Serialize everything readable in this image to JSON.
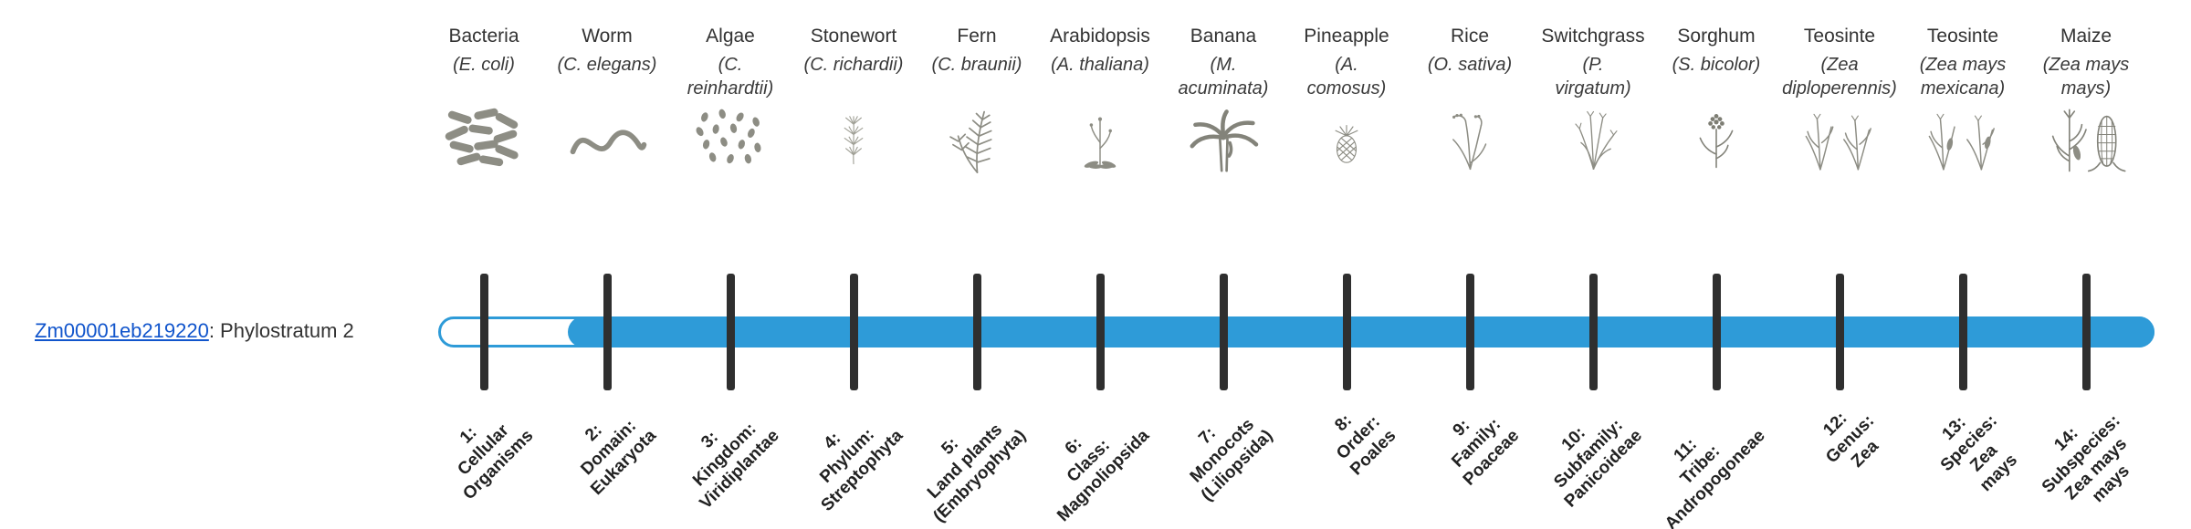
{
  "colors": {
    "bar": "#2E9BD8",
    "tick": "#2f2f2f",
    "link": "#1155CC",
    "text": "#333333"
  },
  "gene": {
    "id": "Zm00001eb219220",
    "suffix": ": Phylostratum 2",
    "phylostratum": 2
  },
  "timeline": {
    "total_strata": 14,
    "filled_from_stratum": 2
  },
  "organisms": [
    {
      "name": "Bacteria",
      "latin": "(E. coli)",
      "icon": "bacteria-icon",
      "stratum_label": "1:\nCellular\nOrganisms"
    },
    {
      "name": "Worm",
      "latin": "(C. elegans)",
      "icon": "worm-icon",
      "stratum_label": "2:\nDomain:\nEukaryota"
    },
    {
      "name": "Algae",
      "latin": "(C.\nreinhardtii)",
      "icon": "algae-icon",
      "stratum_label": "3:\nKingdom:\nViridiplantae"
    },
    {
      "name": "Stonewort",
      "latin": "(C. richardii)",
      "icon": "stonewort-icon",
      "stratum_label": "4:\nPhylum:\nStreptophyta"
    },
    {
      "name": "Fern",
      "latin": "(C. braunii)",
      "icon": "fern-icon",
      "stratum_label": "5:\nLand plants\n(Embryophyta)"
    },
    {
      "name": "Arabidopsis",
      "latin": "(A. thaliana)",
      "icon": "arabidopsis-icon",
      "stratum_label": "6:\nClass:\nMagnoliopsida"
    },
    {
      "name": "Banana",
      "latin": "(M.\nacuminata)",
      "icon": "banana-icon",
      "stratum_label": "7:\nMonocots\n(Liliopsida)"
    },
    {
      "name": "Pineapple",
      "latin": "(A.\ncomosus)",
      "icon": "pineapple-icon",
      "stratum_label": "8:\nOrder:\nPoales"
    },
    {
      "name": "Rice",
      "latin": "(O. sativa)",
      "icon": "rice-icon",
      "stratum_label": "9:\nFamily:\nPoaceae"
    },
    {
      "name": "Switchgrass",
      "latin": "(P.\nvirgatum)",
      "icon": "switchgrass-icon",
      "stratum_label": "10:\nSubfamily:\nPanicoideae"
    },
    {
      "name": "Sorghum",
      "latin": "(S. bicolor)",
      "icon": "sorghum-icon",
      "stratum_label": "11:\nTribe:\nAndropogoneae"
    },
    {
      "name": "Teosinte",
      "latin": "(Zea\ndiploperennis)",
      "icon": "teosinte-diploperennis-icon",
      "stratum_label": "12:\nGenus:\nZea"
    },
    {
      "name": "Teosinte",
      "latin": "(Zea mays\nmexicana)",
      "icon": "teosinte-mexicana-icon",
      "stratum_label": "13:\nSpecies:\nZea\nmays"
    },
    {
      "name": "Maize",
      "latin": "(Zea mays\nmays)",
      "icon": "maize-icon",
      "stratum_label": "14:\nSubspecies:\nZea mays\nmays"
    }
  ]
}
